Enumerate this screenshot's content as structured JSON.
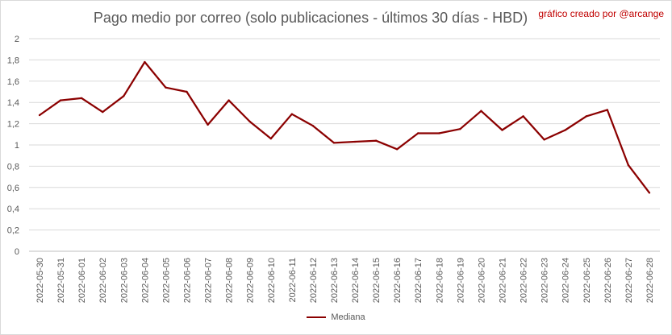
{
  "chart_data": {
    "type": "line",
    "title": "Pago medio por correo (solo publicaciones - últimos 30 días - HBD)",
    "annotation": "gráfico creado por @arcange",
    "xlabel": "",
    "ylabel": "",
    "ylim": [
      0,
      2
    ],
    "yticks": [
      "0",
      "0,2",
      "0,4",
      "0,6",
      "0,8",
      "1",
      "1,2",
      "1,4",
      "1,6",
      "1,8",
      "2"
    ],
    "grid": true,
    "legend_position": "bottom",
    "series_color": "#8b0000",
    "categories": [
      "2022-05-30",
      "2022-05-31",
      "2022-06-01",
      "2022-06-02",
      "2022-06-03",
      "2022-06-04",
      "2022-06-05",
      "2022-06-06",
      "2022-06-07",
      "2022-06-08",
      "2022-06-09",
      "2022-06-10",
      "2022-06-11",
      "2022-06-12",
      "2022-06-13",
      "2022-06-14",
      "2022-06-15",
      "2022-06-16",
      "2022-06-17",
      "2022-06-18",
      "2022-06-19",
      "2022-06-20",
      "2022-06-21",
      "2022-06-22",
      "2022-06-23",
      "2022-06-24",
      "2022-06-25",
      "2022-06-26",
      "2022-06-27",
      "2022-06-28"
    ],
    "series": [
      {
        "name": "Mediana",
        "values": [
          1.28,
          1.42,
          1.44,
          1.31,
          1.46,
          1.78,
          1.54,
          1.5,
          1.19,
          1.42,
          1.22,
          1.06,
          1.29,
          1.18,
          1.02,
          1.03,
          1.04,
          0.96,
          1.11,
          1.11,
          1.15,
          1.32,
          1.14,
          1.27,
          1.05,
          1.14,
          1.27,
          1.33,
          0.81,
          0.55
        ]
      }
    ]
  }
}
